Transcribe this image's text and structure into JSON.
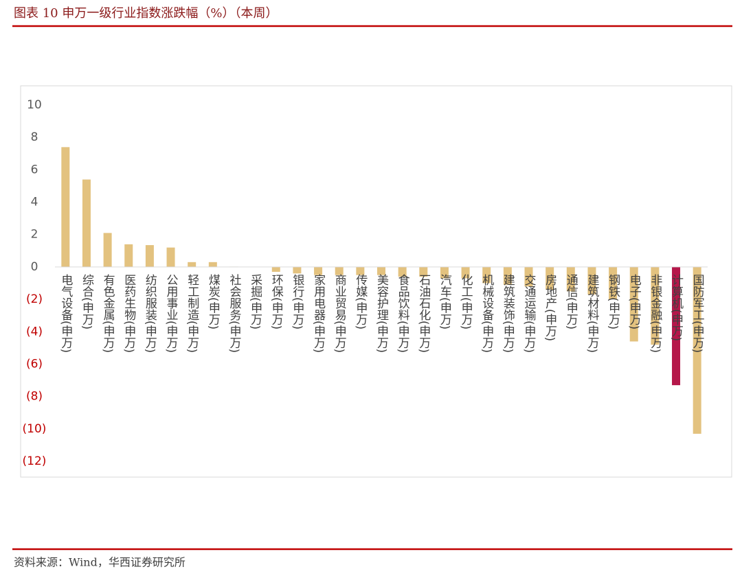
{
  "chart_data": {
    "type": "bar",
    "title": "图表 10 申万一级行业指数涨跌幅（%）（本周）",
    "source": "资料来源：Wind，华西证券研究所",
    "categories": [
      "电气设备(申万)",
      "综合(申万)",
      "有色金属(申万)",
      "医药生物(申万)",
      "纺织服装(申万)",
      "公用事业(申万)",
      "轻工制造(申万)",
      "煤炭(申万)",
      "社会服务(申万)",
      "采掘(申万)",
      "环保(申万)",
      "银行(申万)",
      "家用电器(申万)",
      "商业贸易(申万)",
      "传媒(申万)",
      "美容护理(申万)",
      "食品饮料(申万)",
      "石油石化(申万)",
      "汽车(申万)",
      "化工(申万)",
      "机械设备(申万)",
      "建筑装饰(申万)",
      "交通运输(申万)",
      "房地产(申万)",
      "通信(申万)",
      "建筑材料(申万)",
      "钢铁(申万)",
      "电子(申万)",
      "非银金融(申万)",
      "计算机(申万)",
      "国防军工(申万)"
    ],
    "values": [
      7.4,
      5.4,
      2.1,
      1.4,
      1.35,
      1.2,
      0.3,
      0.3,
      0.02,
      0,
      -0.3,
      -0.4,
      -0.5,
      -0.5,
      -0.5,
      -0.5,
      -0.6,
      -0.6,
      -0.7,
      -0.7,
      -1.0,
      -1.1,
      -1.2,
      -1.4,
      -1.5,
      -1.7,
      -2.0,
      -4.6,
      -4.8,
      -7.3,
      -10.3
    ],
    "colors": [
      "#e3c27f",
      "#e3c27f",
      "#e3c27f",
      "#e3c27f",
      "#e3c27f",
      "#e3c27f",
      "#e3c27f",
      "#e3c27f",
      "#e3c27f",
      "#e3c27f",
      "#e3c27f",
      "#e3c27f",
      "#e3c27f",
      "#e3c27f",
      "#e3c27f",
      "#e3c27f",
      "#e3c27f",
      "#e3c27f",
      "#e3c27f",
      "#e3c27f",
      "#e3c27f",
      "#e3c27f",
      "#e3c27f",
      "#e3c27f",
      "#e3c27f",
      "#e3c27f",
      "#e3c27f",
      "#e3c27f",
      "#e3c27f",
      "#b5174a",
      "#e3c27f"
    ],
    "ylim": [
      -12,
      10
    ],
    "yticks": [
      {
        "value": -12,
        "label": "(12)"
      },
      {
        "value": -10,
        "label": "(10)"
      },
      {
        "value": -8,
        "label": "(8)"
      },
      {
        "value": -6,
        "label": "(6)"
      },
      {
        "value": -4,
        "label": "(4)"
      },
      {
        "value": -2,
        "label": "(2)"
      },
      0,
      2,
      4,
      6,
      8,
      10
    ],
    "negative_tick_color": "#c00000",
    "grid": false
  }
}
